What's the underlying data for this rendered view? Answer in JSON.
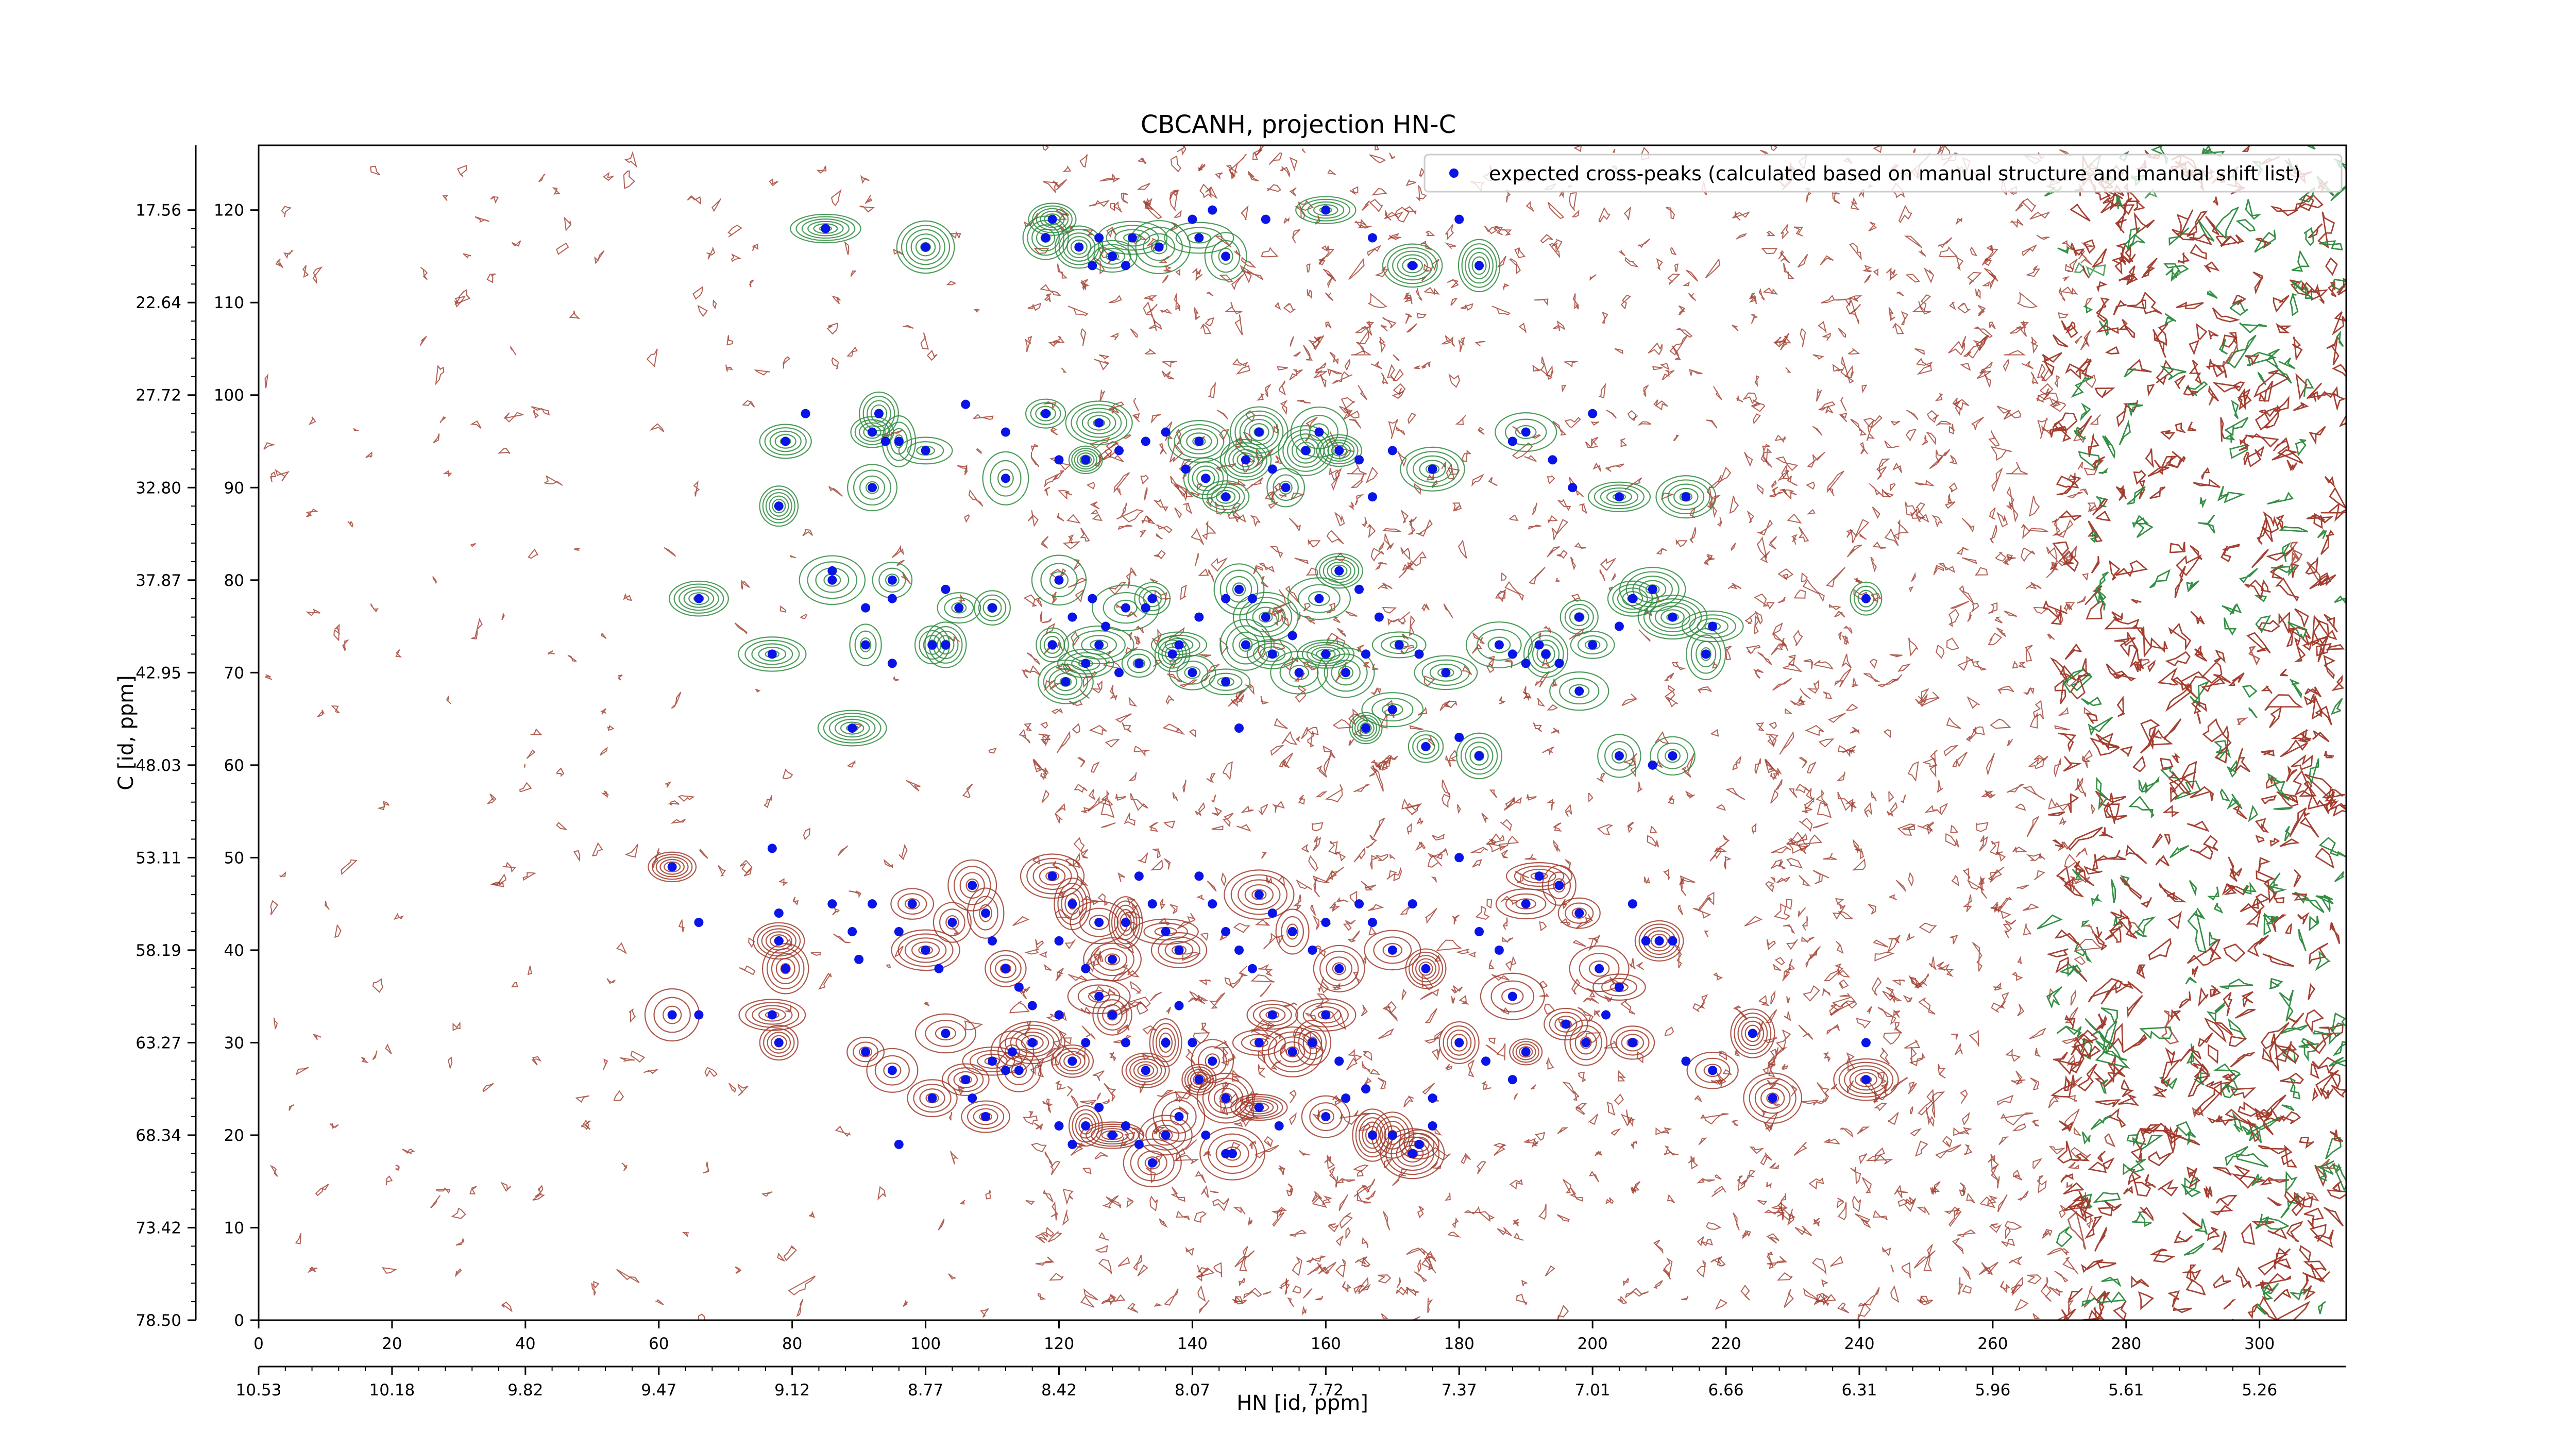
{
  "chart_data": {
    "type": "scatter",
    "title": "CBCANH, projection HN-C",
    "xlabel": "HN [id, ppm]",
    "ylabel": "C [id, ppm]",
    "xlim": [
      0,
      313
    ],
    "ylim": [
      0,
      127
    ],
    "x_ticks": [
      0,
      20,
      40,
      60,
      80,
      100,
      120,
      140,
      160,
      180,
      200,
      220,
      240,
      260,
      280,
      300
    ],
    "x_tick_labels": [
      "0",
      "20",
      "40",
      "60",
      "80",
      "100",
      "120",
      "140",
      "160",
      "180",
      "200",
      "220",
      "240",
      "260",
      "280",
      "300"
    ],
    "x_ppm_labels": [
      "10.53",
      "10.18",
      "9.82",
      "9.47",
      "9.12",
      "8.77",
      "8.42",
      "8.07",
      "7.72",
      "7.37",
      "7.01",
      "6.66",
      "6.31",
      "5.96",
      "5.61",
      "5.26"
    ],
    "y_ticks": [
      0,
      10,
      20,
      30,
      40,
      50,
      60,
      70,
      80,
      90,
      100,
      110,
      120
    ],
    "y_tick_labels": [
      "0",
      "10",
      "20",
      "30",
      "40",
      "50",
      "60",
      "70",
      "80",
      "90",
      "100",
      "110",
      "120"
    ],
    "y_ppm_labels": [
      "78.50",
      "73.42",
      "68.34",
      "63.27",
      "58.19",
      "53.11",
      "48.03",
      "42.95",
      "37.87",
      "32.80",
      "27.72",
      "22.64",
      "17.56"
    ],
    "legend": {
      "placement": "top-right",
      "entry": "expected cross-peaks (calculated based on manual structure and manual shift list)"
    },
    "colors": {
      "positive": "#a03a2a",
      "negative": "#2e8b3e",
      "marker": "#0a14e6"
    },
    "series": [
      {
        "name": "expected cross-peaks (calculated based on manual structure and manual shift list)",
        "points": [
          [
            85,
            118
          ],
          [
            92,
            96
          ],
          [
            92,
            90
          ],
          [
            94,
            95
          ],
          [
            96,
            95
          ],
          [
            100,
            116
          ],
          [
            100,
            94
          ],
          [
            106,
            99
          ],
          [
            112,
            96
          ],
          [
            112,
            91
          ],
          [
            78,
            88
          ],
          [
            79,
            95
          ],
          [
            86,
            81
          ],
          [
            86,
            80
          ],
          [
            91,
            77
          ],
          [
            95,
            80
          ],
          [
            95,
            78
          ],
          [
            103,
            79
          ],
          [
            105,
            77
          ],
          [
            110,
            77
          ],
          [
            66,
            78
          ],
          [
            77,
            72
          ],
          [
            91,
            73
          ],
          [
            95,
            71
          ],
          [
            101,
            73
          ],
          [
            103,
            73
          ],
          [
            89,
            64
          ],
          [
            82,
            98
          ],
          [
            93,
            98
          ],
          [
            118,
            117
          ],
          [
            119,
            119
          ],
          [
            123,
            116
          ],
          [
            125,
            114
          ],
          [
            126,
            117
          ],
          [
            128,
            115
          ],
          [
            130,
            114
          ],
          [
            131,
            117
          ],
          [
            135,
            116
          ],
          [
            140,
            119
          ],
          [
            141,
            117
          ],
          [
            143,
            120
          ],
          [
            145,
            115
          ],
          [
            151,
            119
          ],
          [
            160,
            120
          ],
          [
            167,
            117
          ],
          [
            173,
            114
          ],
          [
            180,
            119
          ],
          [
            183,
            114
          ],
          [
            118,
            98
          ],
          [
            120,
            93
          ],
          [
            124,
            93
          ],
          [
            126,
            97
          ],
          [
            129,
            94
          ],
          [
            133,
            95
          ],
          [
            136,
            96
          ],
          [
            139,
            92
          ],
          [
            141,
            95
          ],
          [
            142,
            91
          ],
          [
            145,
            89
          ],
          [
            148,
            93
          ],
          [
            150,
            96
          ],
          [
            152,
            92
          ],
          [
            154,
            90
          ],
          [
            157,
            94
          ],
          [
            159,
            96
          ],
          [
            162,
            94
          ],
          [
            165,
            93
          ],
          [
            167,
            89
          ],
          [
            170,
            94
          ],
          [
            176,
            92
          ],
          [
            188,
            95
          ],
          [
            190,
            96
          ],
          [
            194,
            93
          ],
          [
            197,
            90
          ],
          [
            200,
            98
          ],
          [
            204,
            89
          ],
          [
            214,
            89
          ],
          [
            120,
            80
          ],
          [
            122,
            76
          ],
          [
            125,
            78
          ],
          [
            127,
            75
          ],
          [
            130,
            77
          ],
          [
            133,
            77
          ],
          [
            134,
            78
          ],
          [
            138,
            73
          ],
          [
            141,
            76
          ],
          [
            145,
            78
          ],
          [
            147,
            79
          ],
          [
            149,
            78
          ],
          [
            151,
            76
          ],
          [
            155,
            74
          ],
          [
            159,
            78
          ],
          [
            162,
            81
          ],
          [
            165,
            79
          ],
          [
            168,
            76
          ],
          [
            171,
            73
          ],
          [
            174,
            72
          ],
          [
            178,
            70
          ],
          [
            186,
            73
          ],
          [
            188,
            72
          ],
          [
            193,
            72
          ],
          [
            195,
            71
          ],
          [
            198,
            76
          ],
          [
            200,
            73
          ],
          [
            204,
            75
          ],
          [
            206,
            78
          ],
          [
            209,
            79
          ],
          [
            212,
            76
          ],
          [
            217,
            72
          ],
          [
            218,
            75
          ],
          [
            119,
            73
          ],
          [
            121,
            69
          ],
          [
            124,
            71
          ],
          [
            126,
            73
          ],
          [
            129,
            70
          ],
          [
            132,
            71
          ],
          [
            137,
            72
          ],
          [
            140,
            70
          ],
          [
            145,
            69
          ],
          [
            148,
            73
          ],
          [
            152,
            72
          ],
          [
            156,
            70
          ],
          [
            160,
            72
          ],
          [
            163,
            70
          ],
          [
            166,
            72
          ],
          [
            166,
            64
          ],
          [
            170,
            66
          ],
          [
            175,
            62
          ],
          [
            183,
            61
          ],
          [
            147,
            64
          ],
          [
            180,
            63
          ],
          [
            190,
            71
          ],
          [
            192,
            73
          ],
          [
            198,
            68
          ],
          [
            204,
            61
          ],
          [
            209,
            60
          ],
          [
            212,
            61
          ],
          [
            241,
            78
          ],
          [
            62,
            49
          ],
          [
            66,
            43
          ],
          [
            77,
            51
          ],
          [
            78,
            44
          ],
          [
            78,
            41
          ],
          [
            79,
            38
          ],
          [
            86,
            45
          ],
          [
            89,
            42
          ],
          [
            90,
            39
          ],
          [
            92,
            45
          ],
          [
            96,
            42
          ],
          [
            98,
            45
          ],
          [
            100,
            40
          ],
          [
            102,
            38
          ],
          [
            104,
            43
          ],
          [
            107,
            47
          ],
          [
            109,
            44
          ],
          [
            110,
            41
          ],
          [
            112,
            38
          ],
          [
            114,
            36
          ],
          [
            116,
            34
          ],
          [
            119,
            48
          ],
          [
            120,
            41
          ],
          [
            122,
            45
          ],
          [
            124,
            38
          ],
          [
            126,
            43
          ],
          [
            128,
            39
          ],
          [
            130,
            43
          ],
          [
            132,
            48
          ],
          [
            134,
            45
          ],
          [
            136,
            42
          ],
          [
            138,
            40
          ],
          [
            141,
            48
          ],
          [
            143,
            45
          ],
          [
            145,
            42
          ],
          [
            147,
            40
          ],
          [
            149,
            38
          ],
          [
            150,
            46
          ],
          [
            152,
            44
          ],
          [
            155,
            42
          ],
          [
            158,
            40
          ],
          [
            160,
            43
          ],
          [
            162,
            38
          ],
          [
            165,
            45
          ],
          [
            167,
            43
          ],
          [
            170,
            40
          ],
          [
            173,
            45
          ],
          [
            175,
            38
          ],
          [
            180,
            50
          ],
          [
            183,
            42
          ],
          [
            186,
            40
          ],
          [
            188,
            35
          ],
          [
            190,
            45
          ],
          [
            192,
            48
          ],
          [
            195,
            47
          ],
          [
            198,
            44
          ],
          [
            201,
            38
          ],
          [
            204,
            36
          ],
          [
            206,
            45
          ],
          [
            208,
            41
          ],
          [
            210,
            41
          ],
          [
            212,
            41
          ],
          [
            62,
            33
          ],
          [
            66,
            33
          ],
          [
            77,
            33
          ],
          [
            78,
            30
          ],
          [
            91,
            29
          ],
          [
            95,
            27
          ],
          [
            103,
            31
          ],
          [
            106,
            26
          ],
          [
            107,
            24
          ],
          [
            110,
            28
          ],
          [
            113,
            29
          ],
          [
            116,
            30
          ],
          [
            120,
            33
          ],
          [
            122,
            28
          ],
          [
            124,
            30
          ],
          [
            126,
            35
          ],
          [
            128,
            33
          ],
          [
            130,
            30
          ],
          [
            133,
            27
          ],
          [
            136,
            30
          ],
          [
            138,
            34
          ],
          [
            140,
            30
          ],
          [
            141,
            26
          ],
          [
            143,
            28
          ],
          [
            145,
            24
          ],
          [
            146,
            18
          ],
          [
            150,
            30
          ],
          [
            152,
            33
          ],
          [
            155,
            29
          ],
          [
            158,
            30
          ],
          [
            160,
            33
          ],
          [
            162,
            28
          ],
          [
            166,
            25
          ],
          [
            170,
            20
          ],
          [
            174,
            19
          ],
          [
            176,
            24
          ],
          [
            180,
            30
          ],
          [
            184,
            28
          ],
          [
            188,
            26
          ],
          [
            190,
            29
          ],
          [
            196,
            32
          ],
          [
            199,
            30
          ],
          [
            202,
            33
          ],
          [
            206,
            30
          ],
          [
            214,
            28
          ],
          [
            218,
            27
          ],
          [
            224,
            31
          ],
          [
            227,
            24
          ],
          [
            241,
            30
          ],
          [
            241,
            26
          ],
          [
            112,
            27
          ],
          [
            120,
            21
          ],
          [
            122,
            19
          ],
          [
            124,
            21
          ],
          [
            126,
            23
          ],
          [
            128,
            20
          ],
          [
            130,
            21
          ],
          [
            132,
            19
          ],
          [
            134,
            17
          ],
          [
            136,
            20
          ],
          [
            138,
            22
          ],
          [
            142,
            20
          ],
          [
            145,
            18
          ],
          [
            150,
            23
          ],
          [
            153,
            21
          ],
          [
            160,
            22
          ],
          [
            163,
            24
          ],
          [
            167,
            20
          ],
          [
            173,
            18
          ],
          [
            176,
            21
          ],
          [
            96,
            19
          ],
          [
            101,
            24
          ],
          [
            109,
            22
          ],
          [
            114,
            27
          ]
        ]
      }
    ]
  }
}
